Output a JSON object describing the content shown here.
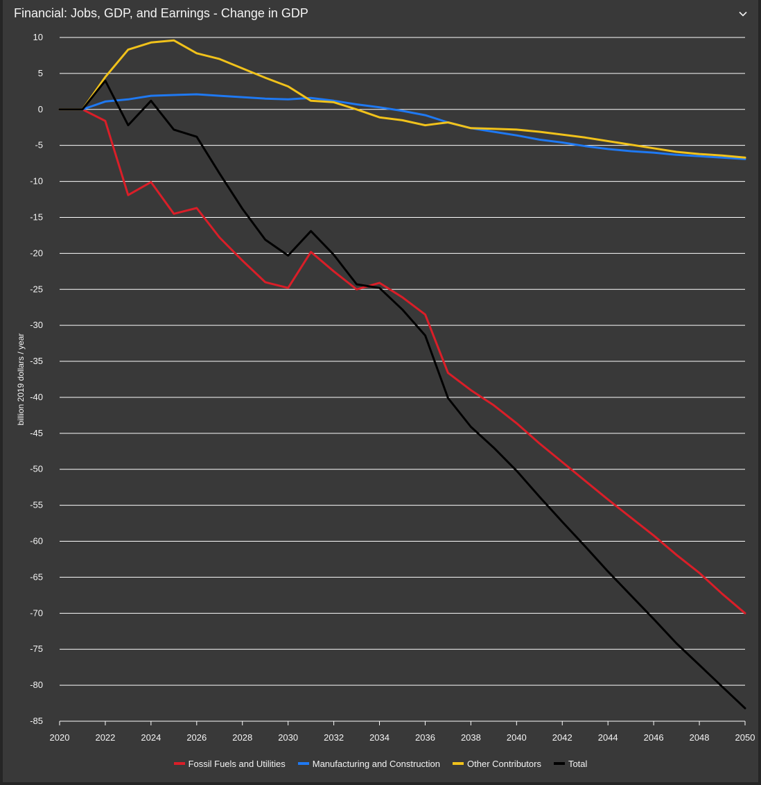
{
  "panel": {
    "title": "Financial: Jobs, GDP, and Earnings - Change in GDP",
    "collapse_icon": "chevron-down-icon"
  },
  "colors": {
    "background": "#393939",
    "grid": "#ffffff",
    "text": "#f4f4f4"
  },
  "chart_data": {
    "type": "line",
    "title": "",
    "xlabel": "",
    "ylabel": "billion 2019 dollars / year",
    "x": [
      2020,
      2021,
      2022,
      2023,
      2024,
      2025,
      2026,
      2027,
      2028,
      2029,
      2030,
      2031,
      2032,
      2033,
      2034,
      2035,
      2036,
      2037,
      2038,
      2039,
      2040,
      2041,
      2042,
      2043,
      2044,
      2045,
      2046,
      2047,
      2048,
      2049,
      2050
    ],
    "xlim": [
      2020,
      2050
    ],
    "ylim": [
      -85,
      10
    ],
    "xticks": [
      "2020",
      "2022",
      "2024",
      "2026",
      "2028",
      "2030",
      "2032",
      "2034",
      "2036",
      "2038",
      "2040",
      "2042",
      "2044",
      "2046",
      "2048",
      "2050"
    ],
    "yticks": [
      "10",
      "5",
      "0",
      "-5",
      "-10",
      "-15",
      "-20",
      "-25",
      "-30",
      "-35",
      "-40",
      "-45",
      "-50",
      "-55",
      "-60",
      "-65",
      "-70",
      "-75",
      "-80",
      "-85"
    ],
    "grid": true,
    "legend_position": "bottom-center",
    "series": [
      {
        "name": "Fossil Fuels and Utilities",
        "color": "#da1e28",
        "values": [
          0,
          0,
          -1.6,
          -11.9,
          -10.1,
          -14.5,
          -13.7,
          -17.8,
          -21.0,
          -24.0,
          -24.8,
          -19.8,
          -22.5,
          -25.0,
          -24.1,
          -26.1,
          -28.5,
          -36.6,
          -39.0,
          -41.1,
          -43.6,
          -46.4,
          -49.0,
          -51.6,
          -54.2,
          -56.7,
          -59.2,
          -61.9,
          -64.4,
          -67.3,
          -70.0
        ]
      },
      {
        "name": "Manufacturing and Construction",
        "color": "#1f79f2",
        "values": [
          0,
          0,
          1.1,
          1.4,
          1.9,
          2.0,
          2.1,
          1.9,
          1.7,
          1.5,
          1.4,
          1.6,
          1.2,
          0.7,
          0.3,
          -0.2,
          -0.8,
          -1.8,
          -2.6,
          -3.1,
          -3.6,
          -4.2,
          -4.6,
          -5.1,
          -5.5,
          -5.8,
          -6.0,
          -6.3,
          -6.5,
          -6.7,
          -6.9
        ]
      },
      {
        "name": "Other Contributors",
        "color": "#f1c21b",
        "values": [
          0,
          0,
          4.5,
          8.3,
          9.3,
          9.6,
          7.8,
          7.0,
          5.7,
          4.4,
          3.2,
          1.2,
          1.0,
          0,
          -1.1,
          -1.5,
          -2.2,
          -1.8,
          -2.6,
          -2.7,
          -2.8,
          -3.1,
          -3.5,
          -3.9,
          -4.4,
          -4.9,
          -5.4,
          -5.9,
          -6.2,
          -6.4,
          -6.7
        ]
      },
      {
        "name": "Total",
        "color": "#000000",
        "values": [
          0,
          0,
          4.0,
          -2.2,
          1.2,
          -2.8,
          -3.8,
          -8.9,
          -13.8,
          -18.1,
          -20.3,
          -16.9,
          -20.2,
          -24.3,
          -24.8,
          -27.8,
          -31.4,
          -40.1,
          -44.1,
          -47.0,
          -50.2,
          -53.8,
          -57.3,
          -60.7,
          -64.2,
          -67.5,
          -70.8,
          -74.2,
          -77.2,
          -80.2,
          -83.2
        ]
      }
    ]
  }
}
